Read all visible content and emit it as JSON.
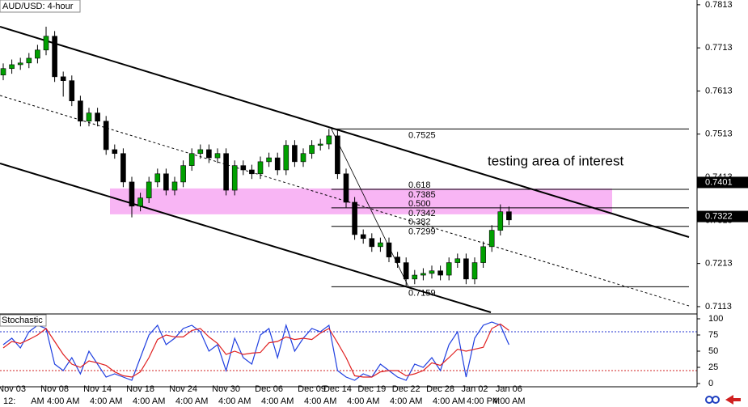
{
  "chart_data": {
    "type": "candlestick",
    "title": "AUD/USD: 4-hour",
    "annotation": "testing area of interest",
    "categories": [
      null,
      "Nov 03",
      null,
      null,
      null,
      null,
      "Nov 08",
      null,
      null,
      null,
      null,
      "Nov 14",
      null,
      null,
      null,
      null,
      "Nov 18",
      null,
      null,
      null,
      null,
      "Nov 24",
      null,
      null,
      null,
      null,
      "Nov 30",
      null,
      null,
      null,
      null,
      "Dec 06",
      null,
      null,
      null,
      null,
      "Dec 09",
      null,
      null,
      "Dec 14",
      null,
      null,
      null,
      "Dec 19",
      null,
      null,
      null,
      "Dec 22",
      null,
      null,
      null,
      "Dec 28",
      null,
      null,
      null,
      "Jan 02",
      null,
      null,
      null,
      "Jan 06"
    ],
    "time_labels": [
      "12:",
      null,
      null,
      null,
      "AM",
      null,
      null,
      "4:00 AM",
      null,
      null,
      null,
      null,
      "4:00 AM",
      null,
      null,
      null,
      null,
      "4:00 AM",
      null,
      null,
      null,
      null,
      "4:00 AM",
      null,
      null,
      null,
      null,
      "4:00 AM",
      null,
      null,
      null,
      null,
      "4:00 AM",
      null,
      null,
      null,
      null,
      "4:00 AM",
      null,
      null,
      null,
      null,
      "4:00 AM",
      null,
      null,
      null,
      null,
      "4:00 AM",
      null,
      null,
      null,
      null,
      "4:00 AM",
      null,
      null,
      null,
      "4:00 PM",
      null,
      null,
      "4:00 AM"
    ],
    "open": [
      0.765,
      0.7665,
      0.7674,
      0.7678,
      0.7689,
      0.7708,
      0.774,
      0.7646,
      0.7637,
      0.759,
      0.7543,
      0.7562,
      0.7543,
      0.7477,
      0.7468,
      0.7402,
      0.7346,
      0.7365,
      0.7402,
      0.7421,
      0.7383,
      0.7402,
      0.744,
      0.7468,
      0.7477,
      0.7458,
      0.7468,
      0.7383,
      0.744,
      0.743,
      0.7421,
      0.7449,
      0.7458,
      0.743,
      0.7487,
      0.7449,
      0.7468,
      0.7487,
      0.749,
      0.7509,
      0.7421,
      0.7355,
      0.728,
      0.7271,
      0.7252,
      0.7261,
      0.7228,
      0.7215,
      0.7177,
      0.7186,
      0.719,
      0.7196,
      0.7186,
      0.7215,
      0.7224,
      0.7177,
      0.7215,
      0.7252,
      0.729,
      0.7333
    ],
    "high": [
      0.7677,
      0.7686,
      0.769,
      0.7701,
      0.772,
      0.7762,
      0.7752,
      0.7658,
      0.7649,
      0.7602,
      0.7574,
      0.7574,
      0.7555,
      0.7489,
      0.748,
      0.7414,
      0.7377,
      0.7414,
      0.7433,
      0.7433,
      0.7414,
      0.7452,
      0.748,
      0.7489,
      0.7489,
      0.748,
      0.748,
      0.7452,
      0.7452,
      0.7442,
      0.7461,
      0.747,
      0.747,
      0.7499,
      0.7499,
      0.748,
      0.7499,
      0.7502,
      0.7525,
      0.7521,
      0.7433,
      0.7367,
      0.7292,
      0.7283,
      0.7273,
      0.7273,
      0.724,
      0.7227,
      0.7198,
      0.7202,
      0.7208,
      0.7208,
      0.7227,
      0.7236,
      0.7236,
      0.7227,
      0.7264,
      0.7302,
      0.735,
      0.7345
    ],
    "low": [
      0.7638,
      0.7653,
      0.7662,
      0.7666,
      0.7677,
      0.7696,
      0.7634,
      0.76,
      0.7578,
      0.7531,
      0.7531,
      0.7531,
      0.7465,
      0.7456,
      0.739,
      0.732,
      0.7334,
      0.7353,
      0.739,
      0.7371,
      0.7371,
      0.739,
      0.7428,
      0.7456,
      0.7446,
      0.7446,
      0.7371,
      0.7371,
      0.7418,
      0.7409,
      0.7409,
      0.7437,
      0.7418,
      0.7418,
      0.7437,
      0.7437,
      0.7456,
      0.7475,
      0.7478,
      0.7409,
      0.7343,
      0.7268,
      0.7259,
      0.724,
      0.724,
      0.7216,
      0.7203,
      0.7159,
      0.7165,
      0.7174,
      0.7178,
      0.7174,
      0.7174,
      0.7203,
      0.7165,
      0.7165,
      0.7203,
      0.724,
      0.7278,
      0.7302
    ],
    "close": [
      0.7665,
      0.7674,
      0.7678,
      0.7689,
      0.7708,
      0.774,
      0.7646,
      0.7637,
      0.759,
      0.7543,
      0.7562,
      0.7543,
      0.7477,
      0.7468,
      0.7402,
      0.7346,
      0.7365,
      0.7402,
      0.7421,
      0.7383,
      0.7402,
      0.744,
      0.7468,
      0.7477,
      0.7458,
      0.7468,
      0.7383,
      0.744,
      0.743,
      0.7421,
      0.7449,
      0.7458,
      0.743,
      0.7487,
      0.7449,
      0.7468,
      0.7487,
      0.749,
      0.7509,
      0.7421,
      0.7355,
      0.728,
      0.7271,
      0.7252,
      0.7261,
      0.7228,
      0.7215,
      0.7177,
      0.7186,
      0.719,
      0.7196,
      0.7186,
      0.7215,
      0.7224,
      0.7177,
      0.7215,
      0.7252,
      0.729,
      0.7333,
      0.7314
    ],
    "up_color": "#00a000",
    "down_color": "#000000",
    "ylim": [
      0.7096,
      0.7824
    ],
    "yticks": [
      0.7813,
      0.7713,
      0.7613,
      0.7513,
      0.7413,
      0.7313,
      0.7213,
      0.7113
    ],
    "price_markers": [
      0.7401,
      0.7322
    ],
    "swing_high": 0.7525,
    "swing_low": 0.7159,
    "fib_levels": [
      {
        "ratio": 0.618,
        "price": 0.7385
      },
      {
        "ratio": {
          "value": 0.5,
          "label": "0.500"
        },
        "price": 0.7342
      },
      {
        "ratio": 0.382,
        "price": 0.7299
      }
    ],
    "zone": [
      0.7327,
      0.7387
    ],
    "zone_color": "#f7a8f2",
    "indicator": {
      "title": "Stochastic",
      "type": "line",
      "ylim": [
        -5,
        107.5
      ],
      "yticks": [
        100,
        75,
        50,
        25,
        0
      ],
      "levels": [
        80,
        20
      ],
      "series": [
        {
          "color": "#1f3fe0",
          "values": [
            60,
            70,
            55,
            80,
            90,
            85,
            30,
            20,
            40,
            15,
            50,
            30,
            10,
            15,
            10,
            5,
            40,
            75,
            90,
            60,
            70,
            85,
            90,
            80,
            50,
            60,
            20,
            70,
            40,
            30,
            75,
            85,
            40,
            90,
            50,
            70,
            85,
            80,
            90,
            20,
            10,
            5,
            15,
            10,
            30,
            20,
            10,
            5,
            30,
            25,
            40,
            20,
            60,
            80,
            10,
            70,
            90,
            95,
            90,
            60
          ]
        },
        {
          "color": "#e02020",
          "values": [
            55,
            65,
            62,
            68,
            75,
            85,
            65,
            45,
            30,
            25,
            35,
            32,
            28,
            18,
            12,
            10,
            18,
            40,
            68,
            75,
            72,
            72,
            82,
            85,
            72,
            62,
            45,
            50,
            45,
            47,
            48,
            63,
            65,
            72,
            68,
            70,
            68,
            78,
            85,
            63,
            40,
            12,
            10,
            10,
            18,
            20,
            20,
            12,
            15,
            20,
            32,
            28,
            40,
            53,
            50,
            53,
            56,
            85,
            92,
            82
          ]
        }
      ]
    }
  }
}
